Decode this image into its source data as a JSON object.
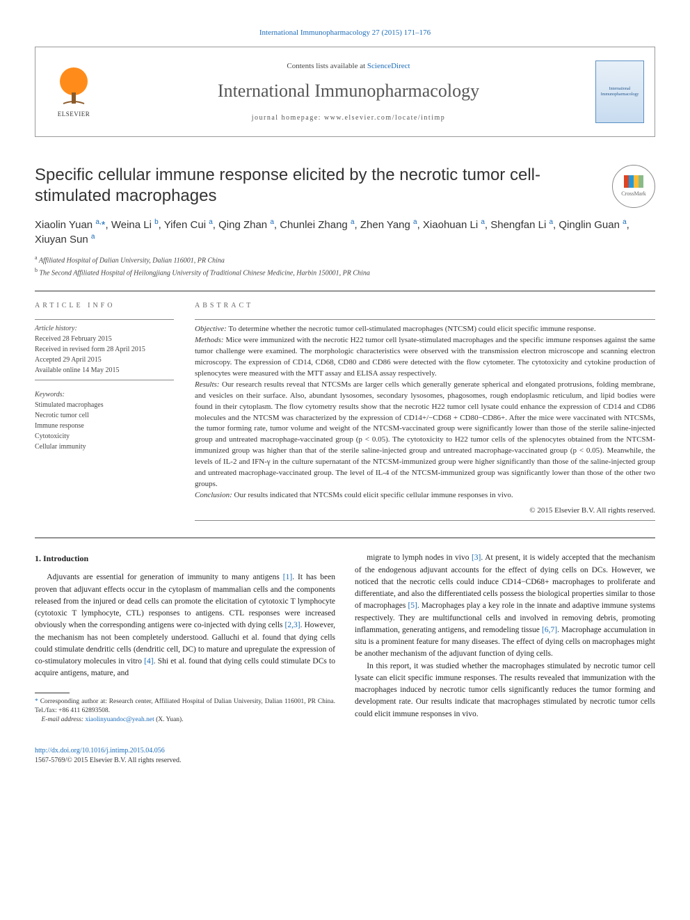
{
  "top_link": {
    "journal": "International Immunopharmacology",
    "citation": "27 (2015) 171–176"
  },
  "header": {
    "contents_prefix": "Contents lists available at ",
    "contents_link": "ScienceDirect",
    "journal_name": "International Immunopharmacology",
    "homepage_label": "journal homepage: ",
    "homepage_url": "www.elsevier.com/locate/intimp",
    "elsevier_label": "ELSEVIER",
    "cover_text": "International Immunopharmacology"
  },
  "title": "Specific cellular immune response elicited by the necrotic tumor cell-stimulated macrophages",
  "crossmark": "CrossMark",
  "authors_html": "Xiaolin Yuan <sup>a,</sup><span class='corr'>*</span>, Weina Li <sup>b</sup>, Yifen Cui <sup>a</sup>, Qing Zhan <sup>a</sup>, Chunlei Zhang <sup>a</sup>, Zhen Yang <sup>a</sup>, Xiaohuan Li <sup>a</sup>, Shengfan Li <sup>a</sup>, Qinglin Guan <sup>a</sup>, Xiuyan Sun <sup>a</sup>",
  "affiliations": [
    {
      "sup": "a",
      "text": "Affiliated Hospital of Dalian University, Dalian 116001, PR China"
    },
    {
      "sup": "b",
      "text": "The Second Affiliated Hospital of Heilongjiang University of Traditional Chinese Medicine, Harbin 150001, PR China"
    }
  ],
  "article_info": {
    "heading": "ARTICLE INFO",
    "history_label": "Article history:",
    "history": [
      "Received 28 February 2015",
      "Received in revised form 28 April 2015",
      "Accepted 29 April 2015",
      "Available online 14 May 2015"
    ],
    "keywords_label": "Keywords:",
    "keywords": [
      "Stimulated macrophages",
      "Necrotic tumor cell",
      "Immune response",
      "Cytotoxicity",
      "Cellular immunity"
    ]
  },
  "abstract": {
    "heading": "ABSTRACT",
    "objective_label": "Objective:",
    "objective": "To determine whether the necrotic tumor cell-stimulated macrophages (NTCSM) could elicit specific immune response.",
    "methods_label": "Methods:",
    "methods": "Mice were immunized with the necrotic H22 tumor cell lysate-stimulated macrophages and the specific immune responses against the same tumor challenge were examined. The morphologic characteristics were observed with the transmission electron microscope and scanning electron microscopy. The expression of CD14, CD68, CD80 and CD86 were detected with the flow cytometer. The cytotoxicity and cytokine production of splenocytes were measured with the MTT assay and ELISA assay respectively.",
    "results_label": "Results:",
    "results": "Our research results reveal that NTCSMs are larger cells which generally generate spherical and elongated protrusions, folding membrane, and vesicles on their surface. Also, abundant lysosomes, secondary lysosomes, phagosomes, rough endoplasmic reticulum, and lipid bodies were found in their cytoplasm. The flow cytometry results show that the necrotic H22 tumor cell lysate could enhance the expression of CD14 and CD86 molecules and the NTCSM was characterized by the expression of CD14+/−CD68 + CD80−CD86+. After the mice were vaccinated with NTCSMs, the tumor forming rate, tumor volume and weight of the NTCSM-vaccinated group were significantly lower than those of the sterile saline-injected group and untreated macrophage-vaccinated group (p < 0.05). The cytotoxicity to H22 tumor cells of the splenocytes obtained from the NTCSM-immunized group was higher than that of the sterile saline-injected group and untreated macrophage-vaccinated group (p < 0.05). Meanwhile, the levels of IL-2 and IFN-γ in the culture supernatant of the NTCSM-immunized group were higher significantly than those of the saline-injected group and untreated macrophage-vaccinated group. The level of IL-4 of the NTCSM-immunized group was significantly lower than those of the other two groups.",
    "conclusion_label": "Conclusion:",
    "conclusion": "Our results indicated that NTCSMs could elicit specific cellular immune responses in vivo.",
    "copyright": "© 2015 Elsevier B.V. All rights reserved."
  },
  "intro": {
    "heading": "1. Introduction",
    "p1": "Adjuvants are essential for generation of immunity to many antigens [1]. It has been proven that adjuvant effects occur in the cytoplasm of mammalian cells and the components released from the injured or dead cells can promote the elicitation of cytotoxic T lymphocyte (cytotoxic T lymphocyte, CTL) responses to antigens. CTL responses were increased obviously when the corresponding antigens were co-injected with dying cells [2,3]. However, the mechanism has not been completely understood. Galluchi et al. found that dying cells could stimulate dendritic cells (dendritic cell, DC) to mature and upregulate the expression of co-stimulatory molecules in vitro [4]. Shi et al. found that dying cells could stimulate DCs to acquire antigens, mature, and",
    "p2": "migrate to lymph nodes in vivo [3]. At present, it is widely accepted that the mechanism of the endogenous adjuvant accounts for the effect of dying cells on DCs. However, we noticed that the necrotic cells could induce CD14−CD68+ macrophages to proliferate and differentiate, and also the differentiated cells possess the biological properties similar to those of macrophages [5]. Macrophages play a key role in the innate and adaptive immune systems respectively. They are multifunctional cells and involved in removing debris, promoting inflammation, generating antigens, and remodeling tissue [6,7]. Macrophage accumulation in situ is a prominent feature for many diseases. The effect of dying cells on macrophages might be another mechanism of the adjuvant function of dying cells.",
    "p3": "In this report, it was studied whether the macrophages stimulated by necrotic tumor cell lysate can elicit specific immune responses. The results revealed that immunization with the macrophages induced by necrotic tumor cells significantly reduces the tumor forming and development rate. Our results indicate that macrophages stimulated by necrotic tumor cells could elicit immune responses in vivo."
  },
  "footnote": {
    "corr": "Corresponding author at: Research center, Affiliated Hospital of Dalian University, Dalian 116001, PR China. Tel./fax: +86 411 62893508.",
    "email_label": "E-mail address:",
    "email": "xiaolinyuandoc@yeah.net",
    "email_name": "(X. Yuan)."
  },
  "bottom": {
    "doi": "http://dx.doi.org/10.1016/j.intimp.2015.04.056",
    "issn_copyright": "1567-5769/© 2015 Elsevier B.V. All rights reserved."
  },
  "colors": {
    "link": "#1a6bb8",
    "text": "#222222",
    "muted": "#666666",
    "border": "#333333"
  }
}
